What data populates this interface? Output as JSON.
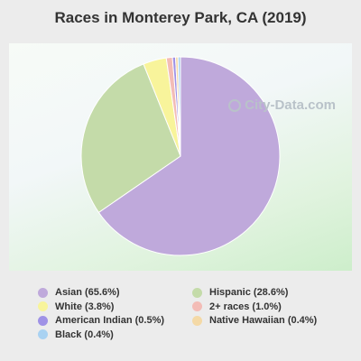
{
  "title": "Races in Monterey Park, CA (2019)",
  "watermark": "City-Data.com",
  "chart_data": {
    "type": "pie",
    "title": "Races in Monterey Park, CA (2019)",
    "slices": [
      {
        "label": "Asian",
        "value": 65.6,
        "display": "Asian (65.6%)",
        "color": "#bfa9db"
      },
      {
        "label": "Hispanic",
        "value": 28.6,
        "display": "Hispanic (28.6%)",
        "color": "#c4dba9"
      },
      {
        "label": "White",
        "value": 3.8,
        "display": "White (3.8%)",
        "color": "#f8f49b"
      },
      {
        "label": "2+ races",
        "value": 1.0,
        "display": "2+ races (1.0%)",
        "color": "#f3bcb6"
      },
      {
        "label": "American Indian",
        "value": 0.5,
        "display": "American Indian (0.5%)",
        "color": "#9f92e6"
      },
      {
        "label": "Native Hawaiian",
        "value": 0.4,
        "display": "Native Hawaiian (0.4%)",
        "color": "#f4d9a6"
      },
      {
        "label": "Black",
        "value": 0.4,
        "display": "Black (0.4%)",
        "color": "#a9d2f2"
      }
    ],
    "legend_order": [
      "Asian",
      "Hispanic",
      "White",
      "2+ races",
      "American Indian",
      "Native Hawaiian",
      "Black"
    ],
    "legend_placement": "bottom"
  }
}
